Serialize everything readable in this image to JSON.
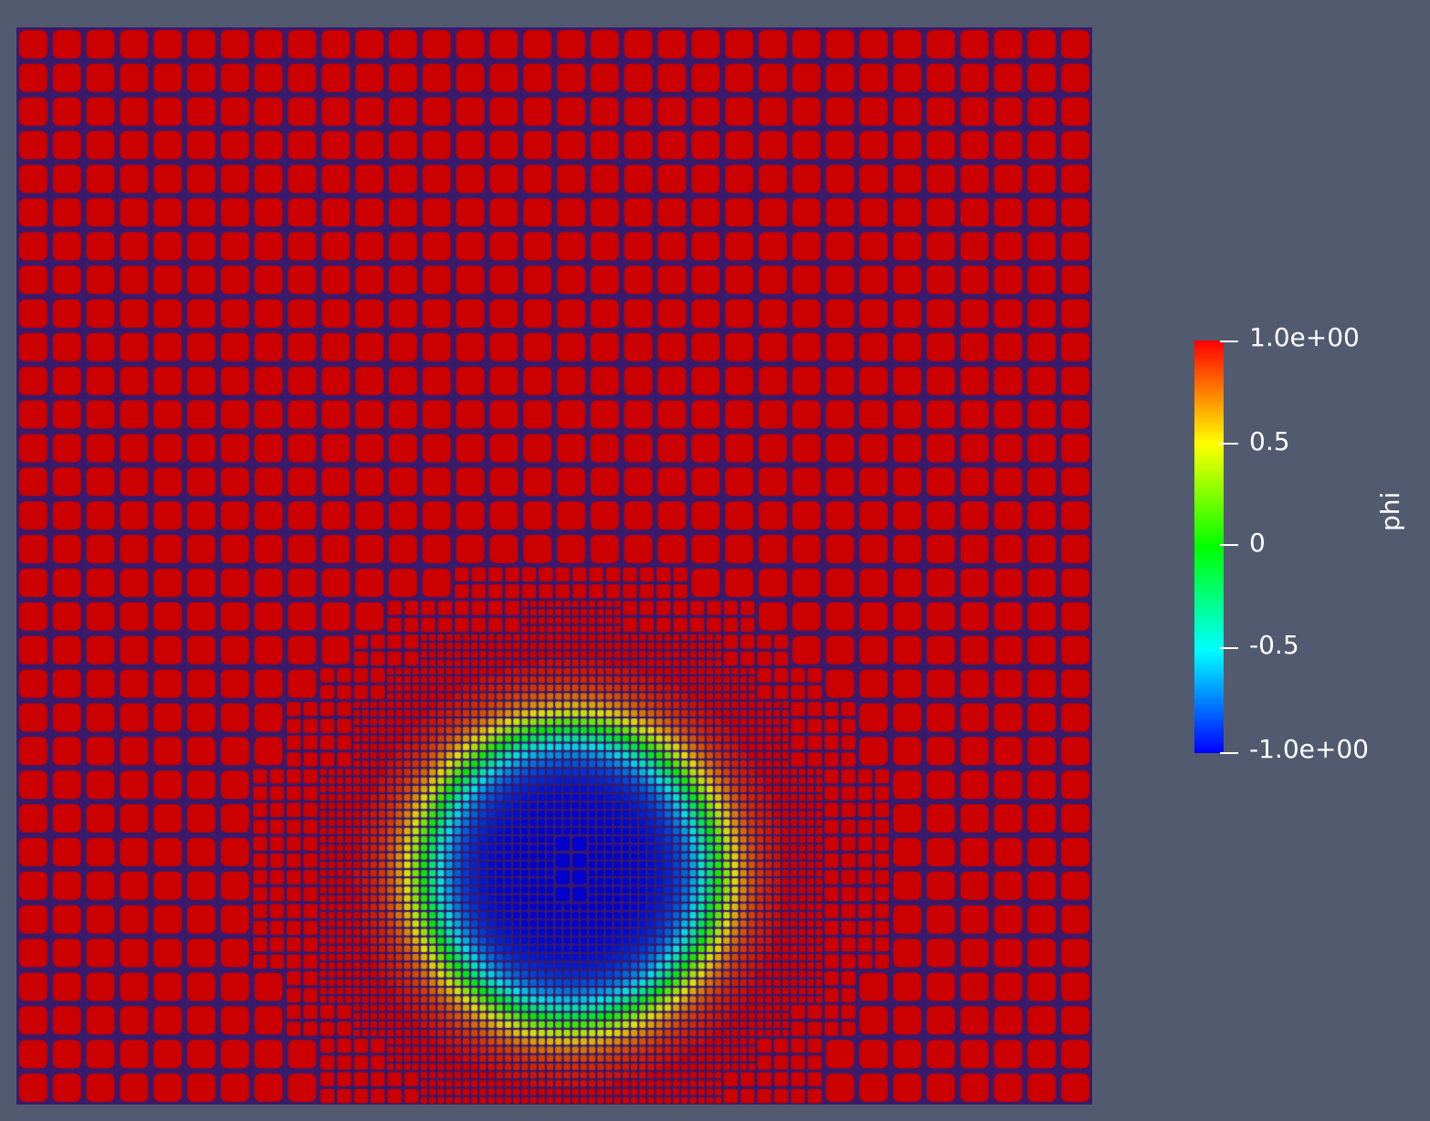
{
  "viewport": {
    "background": "#525a70",
    "mesh_line_color": "#3a1a6a"
  },
  "scalar_bar": {
    "title": "phi",
    "ticks": [
      "1.0e+00",
      "0.5",
      "0",
      "-0.5",
      "-1.0e+00"
    ],
    "range": [
      -1.0,
      1.0
    ],
    "colormap": "rainbow (blue-to-red)"
  },
  "field": {
    "name": "phi",
    "outside_value": 1.0,
    "inside_value": -1.0,
    "bubble_center_fraction": [
      0.515,
      0.786
    ],
    "bubble_radius_fraction": 0.136,
    "interface_width_fraction": 0.06,
    "coarse_cells": 32,
    "refinement_levels": [
      1,
      2,
      4
    ]
  }
}
